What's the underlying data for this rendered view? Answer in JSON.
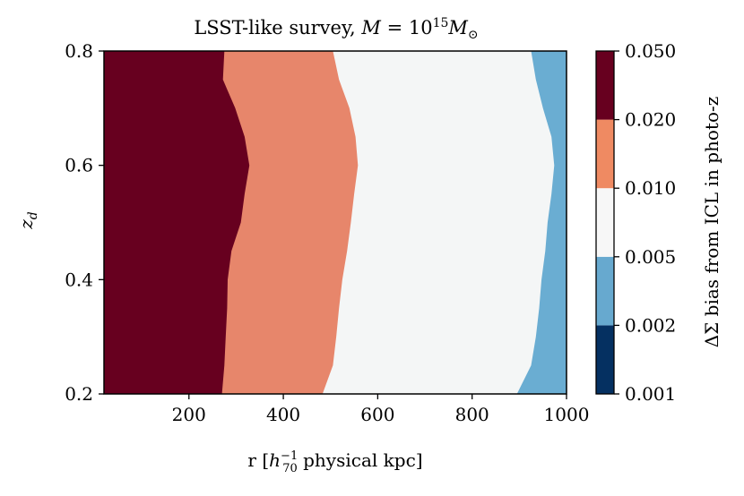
{
  "chart_data": {
    "type": "heatmap",
    "title": "LSST-like survey, M = 10^15 M_sun",
    "title_parts": {
      "prefix": "LSST-like survey, ",
      "mass_symbol": "M",
      "equals": " = 10",
      "exponent": "15",
      "unit": "M",
      "unit_sub": "⊙"
    },
    "xlabel": "r [h70^-1 physical kpc]",
    "xlabel_parts": {
      "prefix": "r [",
      "h": "h",
      "sub": "70",
      "sup": "−1",
      "suffix": " physical kpc]"
    },
    "ylabel": "z_d",
    "ylabel_parts": {
      "main": "z",
      "sub": "d"
    },
    "xlim": [
      20,
      1000
    ],
    "ylim": [
      0.2,
      0.8
    ],
    "x_ticks": [
      200,
      400,
      600,
      800,
      1000
    ],
    "x_tick_labels": [
      "200",
      "400",
      "600",
      "800",
      "1000"
    ],
    "y_ticks": [
      0.2,
      0.4,
      0.6,
      0.8
    ],
    "y_tick_labels": [
      "0.2",
      "0.4",
      "0.6",
      "0.8"
    ],
    "colorbar": {
      "label": "ΔΣ bias from ICL in photo-z",
      "boundaries": [
        0.001,
        0.002,
        0.005,
        0.01,
        0.02,
        0.05
      ],
      "tick_labels": [
        "0.001",
        "0.002",
        "0.005",
        "0.010",
        "0.020",
        "0.050"
      ],
      "colors": [
        "#053061",
        "#67a9cf",
        "#f7f7f7",
        "#ef8a62",
        "#67001f"
      ]
    },
    "region_colors": [
      "#67001f",
      "#e7866b",
      "#f4f6f6",
      "#6aadd2"
    ],
    "contours": {
      "z": [
        0.2,
        0.25,
        0.3,
        0.35,
        0.4,
        0.45,
        0.5,
        0.55,
        0.6,
        0.65,
        0.7,
        0.75,
        0.8
      ],
      "r_at_0.020": [
        270,
        275,
        278,
        281,
        282,
        290,
        310,
        318,
        328,
        318,
        298,
        272,
        275
      ],
      "r_at_0.010": [
        483,
        505,
        512,
        518,
        525,
        535,
        543,
        550,
        558,
        553,
        540,
        518,
        505
      ],
      "r_at_0.005": [
        895,
        925,
        935,
        942,
        947,
        955,
        960,
        968,
        974,
        968,
        950,
        935,
        925
      ]
    }
  }
}
